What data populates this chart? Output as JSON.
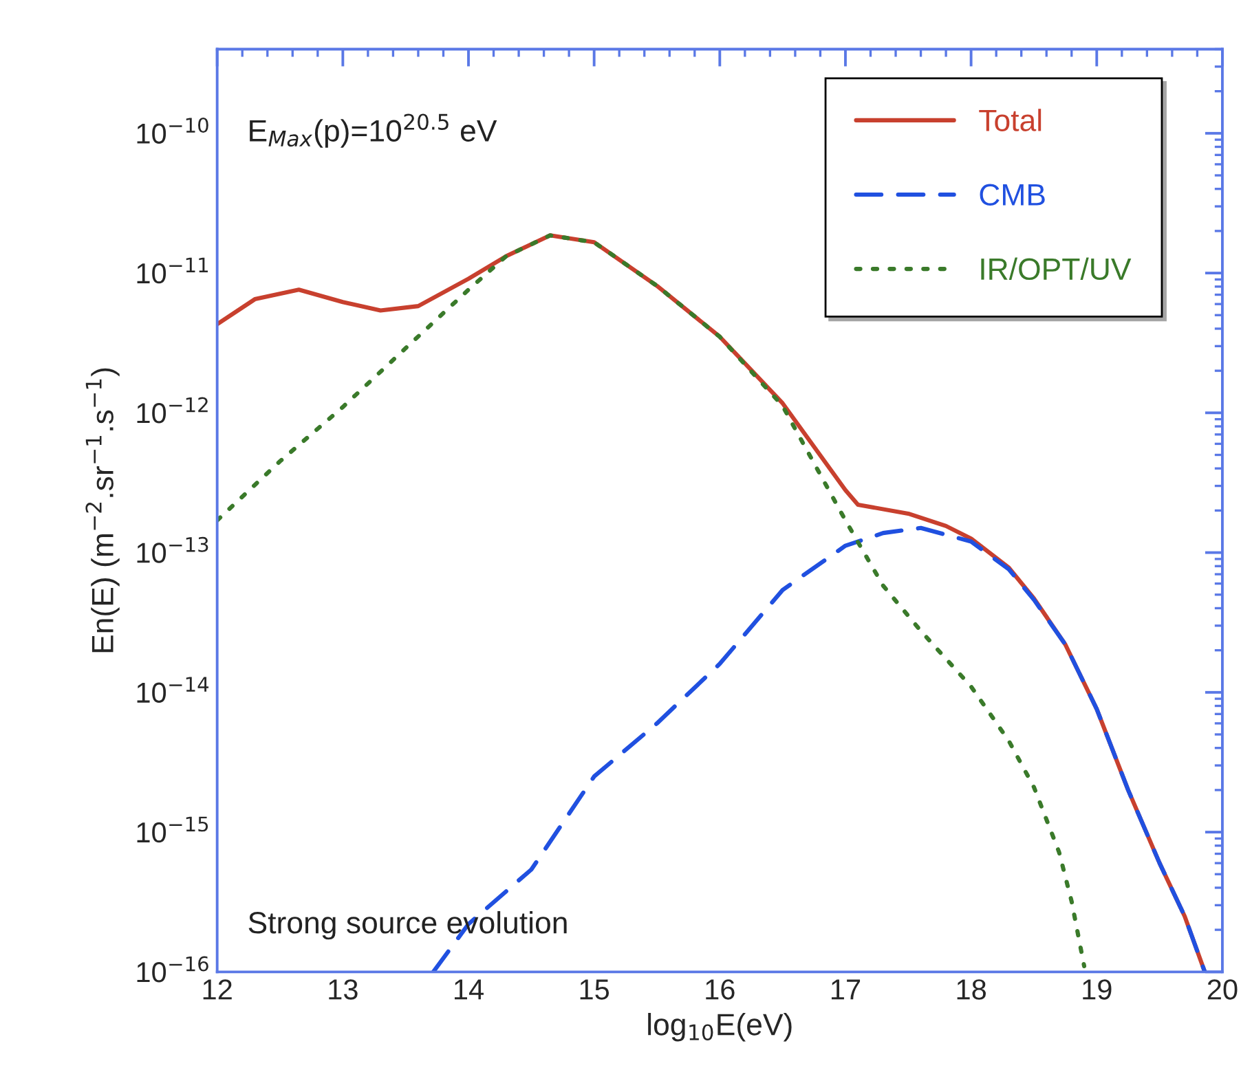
{
  "chart_data": {
    "type": "line",
    "xlabel": "log$_{10}$E(eV)",
    "ylabel": "En(E) (m$^{−2}$.sr$^{−1}$.s$^{−1}$)",
    "annotations": [
      "E$_{Max}$(p)=10$^{20.5}$ eV",
      "Strong source evolution"
    ],
    "log": "y",
    "grid": false,
    "legend": "top right",
    "xlim": [
      12,
      20
    ],
    "xticks": [
      12,
      13,
      14,
      15,
      16,
      17,
      18,
      19,
      20
    ],
    "ylim": [
      1e-16,
      4e-10
    ],
    "yticks": [
      {
        "value": 1e-16,
        "label": "10$^{−16}$"
      },
      {
        "value": 1e-15,
        "label": "10$^{−15}$"
      },
      {
        "value": 1e-14,
        "label": "10$^{−14}$"
      },
      {
        "value": 1e-13,
        "label": "10$^{−13}$"
      },
      {
        "value": 1e-12,
        "label": "10$^{−12}$"
      },
      {
        "value": 1e-11,
        "label": "10$^{−11}$"
      },
      {
        "value": 1e-10,
        "label": "10$^{−10}$"
      }
    ],
    "series": [
      {
        "name": "Total",
        "color": "#c8402e",
        "line_style": "solid",
        "x": [
          12,
          12.3,
          12.65,
          13,
          13.3,
          13.6,
          14,
          14.3,
          14.65,
          15,
          15.5,
          16,
          16.5,
          17,
          17.1,
          17.5,
          17.8,
          18,
          18.3,
          18.5,
          18.75,
          19,
          19.25,
          19.5,
          19.7,
          19.86
        ],
        "values": [
          4.3e-12,
          6.5e-12,
          7.6e-12,
          6.2e-12,
          5.4e-12,
          5.8e-12,
          9.1e-12,
          1.32e-11,
          1.86e-11,
          1.66e-11,
          8.1e-12,
          3.5e-12,
          1.17e-12,
          2.8e-13,
          2.2e-13,
          1.9e-13,
          1.55e-13,
          1.26e-13,
          7.8e-14,
          4.7e-14,
          2.2e-14,
          7.6e-15,
          2e-15,
          6e-16,
          2.5e-16,
          1e-16
        ]
      },
      {
        "name": "CMB",
        "color": "#2050e0",
        "line_style": "dashed",
        "x": [
          13.72,
          14,
          14.5,
          15,
          15.5,
          16,
          16.5,
          17,
          17.3,
          17.6,
          18,
          18.3,
          18.5,
          18.75,
          19,
          19.25,
          19.5,
          19.7,
          19.86
        ],
        "values": [
          1e-16,
          2.2e-16,
          5.4e-16,
          2.5e-15,
          6e-15,
          1.6e-14,
          5.4e-14,
          1.12e-13,
          1.38e-13,
          1.5e-13,
          1.2e-13,
          7.6e-14,
          4.6e-14,
          2.2e-14,
          7.6e-15,
          2e-15,
          6e-16,
          2.5e-16,
          1e-16
        ]
      },
      {
        "name": "IR/OPT/UV",
        "color": "#3a7a2a",
        "line_style": "dotted",
        "x": [
          12,
          12.5,
          13,
          13.5,
          14,
          14.3,
          14.65,
          15,
          15.5,
          16,
          16.5,
          17,
          17.3,
          17.6,
          18,
          18.3,
          18.5,
          18.7,
          18.8,
          18.9
        ],
        "values": [
          1.7e-13,
          4.5e-13,
          1.1e-12,
          2.9e-12,
          7.6e-12,
          1.32e-11,
          1.86e-11,
          1.66e-11,
          8.1e-12,
          3.5e-12,
          1.12e-12,
          1.7e-13,
          5.8e-14,
          2.75e-14,
          1.1e-14,
          4.5e-15,
          2.1e-15,
          7.2e-16,
          3.2e-16,
          1.1e-16
        ]
      }
    ]
  }
}
